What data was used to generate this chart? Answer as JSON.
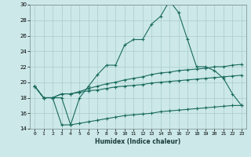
{
  "xlabel": "Humidex (Indice chaleur)",
  "bg_color": "#cce8e8",
  "grid_color": "#aacccc",
  "line_color": "#1a6b5e",
  "x_values": [
    0,
    1,
    2,
    3,
    4,
    5,
    6,
    7,
    8,
    9,
    10,
    11,
    12,
    13,
    14,
    15,
    16,
    17,
    18,
    19,
    20,
    21,
    22,
    23
  ],
  "series1": [
    19.5,
    18.0,
    18.0,
    18.0,
    14.5,
    18.0,
    19.5,
    21.0,
    22.2,
    22.2,
    24.8,
    25.5,
    25.5,
    27.5,
    28.5,
    30.5,
    29.0,
    25.5,
    22.0,
    22.0,
    21.5,
    20.5,
    18.5,
    17.0
  ],
  "series2": [
    19.5,
    18.0,
    18.0,
    18.5,
    18.5,
    18.8,
    19.2,
    19.5,
    19.8,
    20.0,
    20.3,
    20.5,
    20.7,
    21.0,
    21.2,
    21.3,
    21.5,
    21.6,
    21.7,
    21.8,
    22.0,
    22.0,
    22.2,
    22.3
  ],
  "series3": [
    19.5,
    18.0,
    18.0,
    18.5,
    18.5,
    18.7,
    18.9,
    19.0,
    19.2,
    19.4,
    19.5,
    19.6,
    19.7,
    19.9,
    20.0,
    20.1,
    20.2,
    20.3,
    20.4,
    20.5,
    20.6,
    20.7,
    20.8,
    20.9
  ],
  "series4": [
    19.5,
    18.0,
    18.0,
    14.5,
    14.5,
    14.7,
    14.9,
    15.1,
    15.3,
    15.5,
    15.7,
    15.8,
    15.9,
    16.0,
    16.2,
    16.3,
    16.4,
    16.5,
    16.6,
    16.7,
    16.8,
    16.9,
    17.0,
    17.0
  ],
  "ylim": [
    14,
    30
  ],
  "xlim": [
    -0.5,
    23.5
  ],
  "yticks": [
    14,
    16,
    18,
    20,
    22,
    24,
    26,
    28,
    30
  ],
  "xticks": [
    0,
    1,
    2,
    3,
    4,
    5,
    6,
    7,
    8,
    9,
    10,
    11,
    12,
    13,
    14,
    15,
    16,
    17,
    18,
    19,
    20,
    21,
    22,
    23
  ],
  "marker": "+",
  "markersize": 3,
  "linewidth": 0.8
}
